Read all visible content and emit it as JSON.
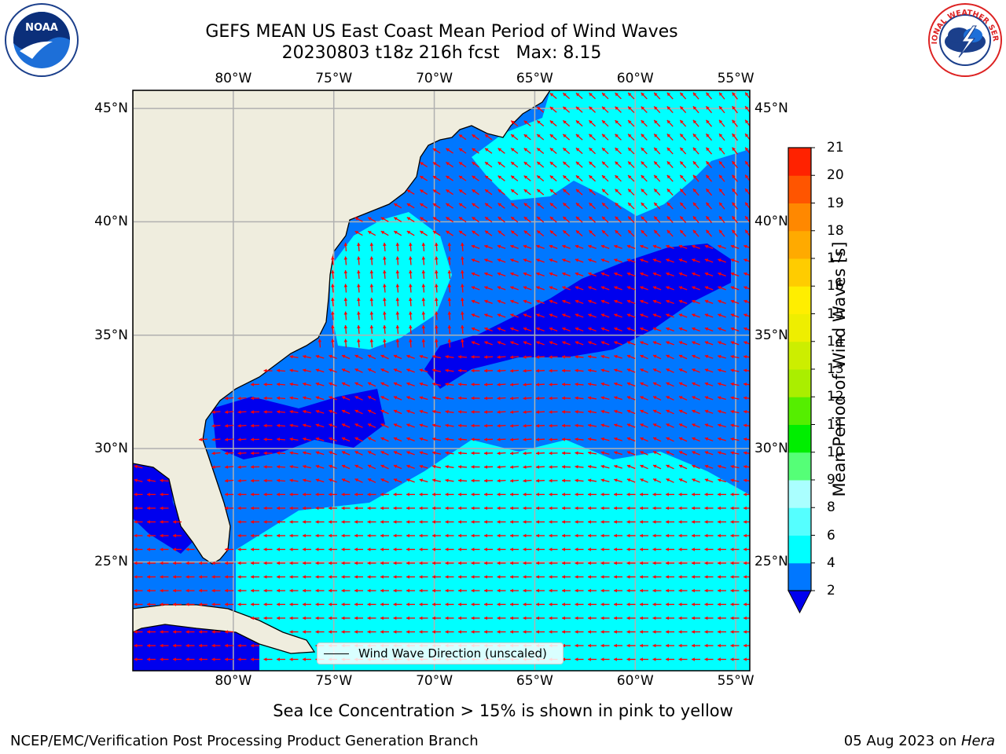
{
  "title": {
    "line1": "GEFS MEAN US East Coast Mean Period of Wind Waves",
    "line2": "20230803 t18z 216h fcst   Max: 8.15"
  },
  "logos": {
    "left": {
      "text": "NOAA",
      "ring_text": "NATIONAL OCEANIC AND ATMOSPHERIC ADMINISTRATION · U.S. DEPARTMENT OF COMMERCE",
      "icon": "noaa-logo"
    },
    "right": {
      "ring_text": "NATIONAL WEATHER SERVICE",
      "icon": "nws-logo"
    }
  },
  "map": {
    "lon_ticks": [
      "80°W",
      "75°W",
      "70°W",
      "65°W",
      "60°W",
      "55°W"
    ],
    "lat_ticks": [
      "45°N",
      "40°N",
      "35°N",
      "30°N",
      "25°N"
    ],
    "extent": {
      "lon_min": -85,
      "lon_max": -54.3,
      "lat_min": 20.2,
      "lat_max": 45.8
    },
    "legend_label": "Wind Wave Direction (unscaled)",
    "colors": {
      "land": "#efedde",
      "c0_2": "#0000ee",
      "c2_4": "#0077ff",
      "c4_6": "#00ffff",
      "arrow": "#ff0000",
      "grid": "#b0b0b0"
    }
  },
  "colorbar": {
    "label": "Mean Period of Wind Waves [s]",
    "levels": [
      "2",
      "4",
      "6",
      "8",
      "9",
      "10",
      "11",
      "12",
      "13",
      "14",
      "15",
      "16",
      "17",
      "18",
      "19",
      "20",
      "21"
    ],
    "colors": [
      "#0077ff",
      "#00ffff",
      "#55ffff",
      "#aaffff",
      "#55ff77",
      "#00ee00",
      "#55ee00",
      "#aaee00",
      "#ccee00",
      "#eeee00",
      "#ffee00",
      "#ffcc00",
      "#ffaa00",
      "#ff8800",
      "#ff5500",
      "#ff2200",
      "#ff0000"
    ],
    "under_color": "#0000ee"
  },
  "footer": {
    "note": "Sea Ice Concentration > 15% is shown in pink to yellow",
    "credit": "NCEP/EMC/Verification Post Processing Product Generation Branch",
    "date": "05 Aug 2023 on ",
    "machine": "Hera"
  }
}
